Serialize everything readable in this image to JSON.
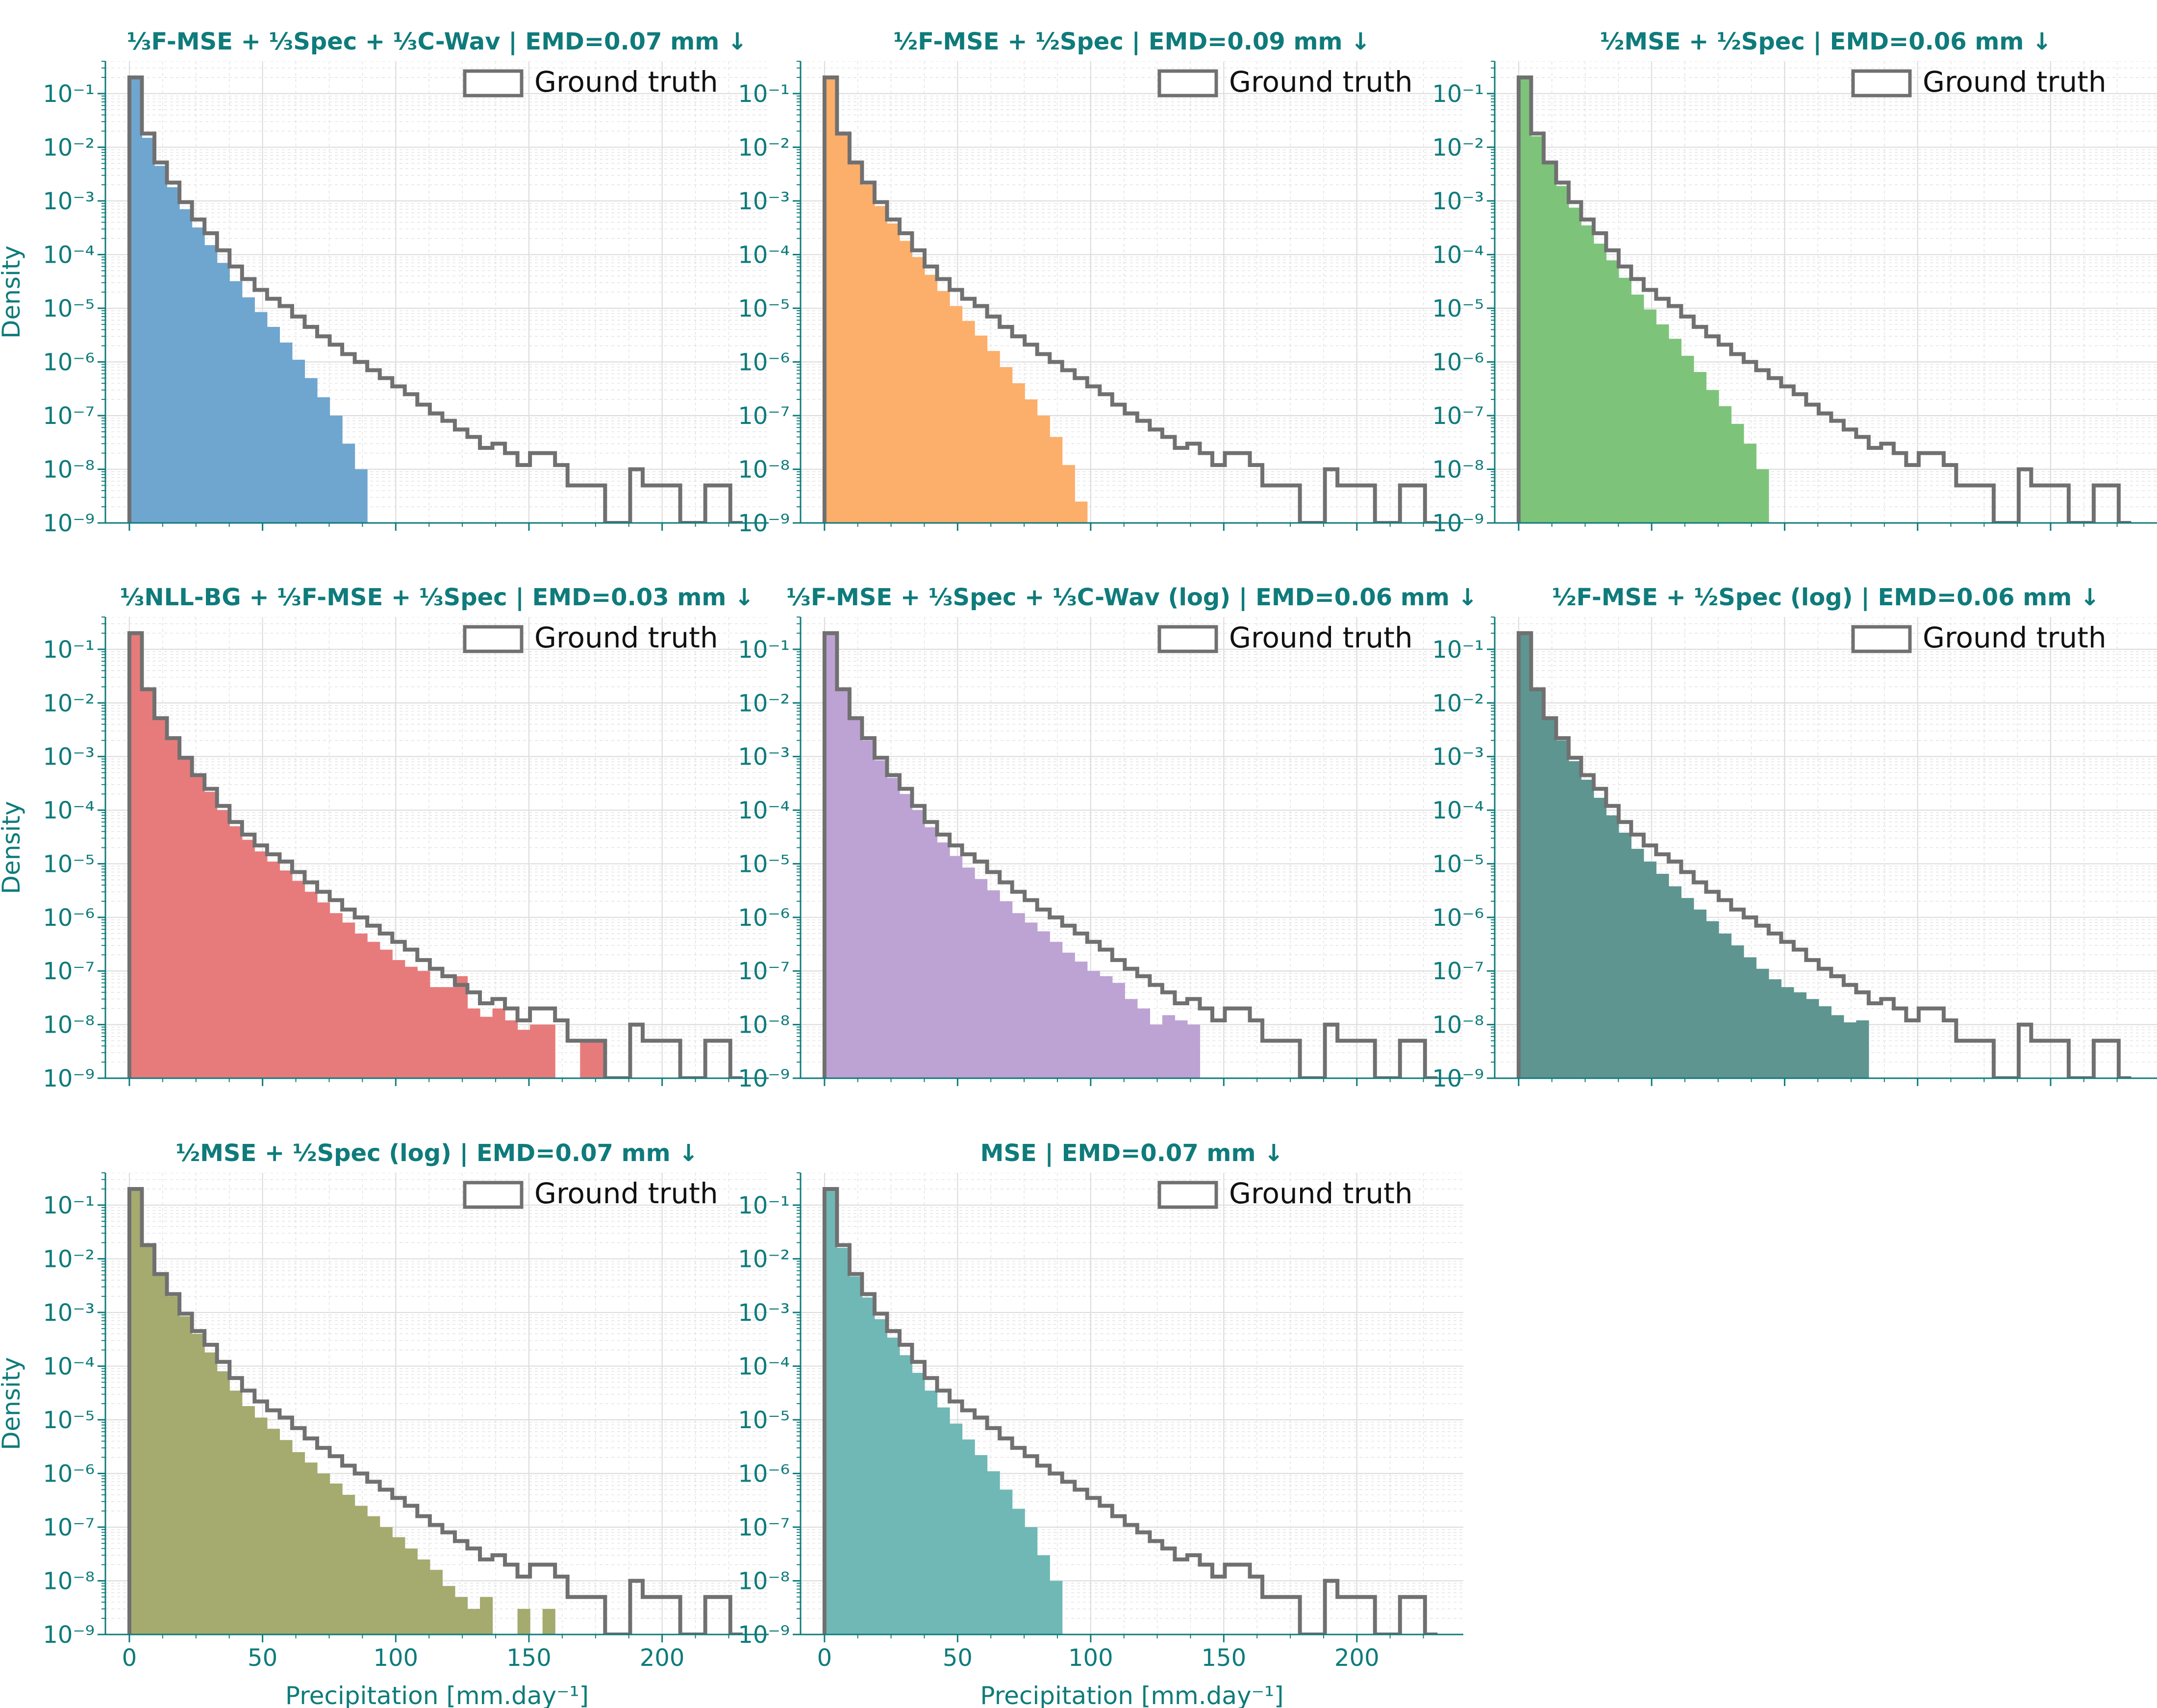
{
  "figure": {
    "text_color": "#0f7b7b",
    "ground_truth_color": "#707070",
    "grid_color": "#dddddd",
    "xlabel": "Precipitation [mm.day⁻¹]",
    "ylabel": "Density",
    "legend_label": "Ground truth"
  },
  "chart_data": [
    {
      "type": "histogram",
      "title": "⅓F-MSE + ⅓Spec + ⅓C-Wav | EMD=0.07 mm ↓",
      "color": "#6fa6cf",
      "yscale": "log",
      "ylim": [
        1e-09,
        0.4
      ],
      "xlim": [
        -9,
        240
      ],
      "xticks": [
        0,
        50,
        100,
        150,
        200
      ],
      "yticks": [
        "10⁻⁹",
        "10⁻⁸",
        "10⁻⁷",
        "10⁻⁶",
        "10⁻⁵",
        "10⁻⁴",
        "10⁻³",
        "10⁻²",
        "10⁻¹"
      ],
      "legend": "top-right",
      "bin_width": 4.7,
      "ground_truth": [
        0.2,
        0.018,
        0.0052,
        0.0022,
        0.00095,
        0.00045,
        0.00025,
        0.00012,
        6e-05,
        3.5e-05,
        2.2e-05,
        1.5e-05,
        1.1e-05,
        7e-06,
        4.5e-06,
        3e-06,
        2.1e-06,
        1.4e-06,
        1e-06,
        7e-07,
        5e-07,
        3.5e-07,
        2.5e-07,
        1.6e-07,
        1.1e-07,
        8e-08,
        5.5e-08,
        4e-08,
        2.5e-08,
        3e-08,
        2e-08,
        1.2e-08,
        2e-08,
        2e-08,
        1.2e-08,
        5e-09,
        5e-09,
        5e-09,
        1e-09,
        1e-09,
        1e-08,
        5e-09,
        5e-09,
        5e-09,
        1e-09,
        1e-09,
        5e-09,
        5e-09,
        1e-09
      ],
      "predicted": [
        0.2,
        0.015,
        0.0045,
        0.0018,
        0.0007,
        0.00032,
        0.00015,
        7e-05,
        3.2e-05,
        1.6e-05,
        8.5e-06,
        4.5e-06,
        2.3e-06,
        1.1e-06,
        5e-07,
        2.2e-07,
        1e-07,
        3e-08,
        1e-08
      ]
    },
    {
      "type": "histogram",
      "title": "½F-MSE + ½Spec | EMD=0.09 mm ↓",
      "color": "#fcae6b",
      "yscale": "log",
      "ylim": [
        1e-09,
        0.4
      ],
      "xlim": [
        -9,
        240
      ],
      "xticks": [
        0,
        50,
        100,
        150,
        200
      ],
      "yticks": [
        "10⁻⁹",
        "10⁻⁸",
        "10⁻⁷",
        "10⁻⁶",
        "10⁻⁵",
        "10⁻⁴",
        "10⁻³",
        "10⁻²",
        "10⁻¹"
      ],
      "legend": "top-right",
      "bin_width": 4.7,
      "ground_truth": [
        0.2,
        0.018,
        0.0052,
        0.0022,
        0.00095,
        0.00045,
        0.00025,
        0.00012,
        6e-05,
        3.5e-05,
        2.2e-05,
        1.5e-05,
        1.1e-05,
        7e-06,
        4.5e-06,
        3e-06,
        2.1e-06,
        1.4e-06,
        1e-06,
        7e-07,
        5e-07,
        3.5e-07,
        2.5e-07,
        1.6e-07,
        1.1e-07,
        8e-08,
        5.5e-08,
        4e-08,
        2.5e-08,
        3e-08,
        2e-08,
        1.2e-08,
        2e-08,
        2e-08,
        1.2e-08,
        5e-09,
        5e-09,
        5e-09,
        1e-09,
        1e-09,
        1e-08,
        5e-09,
        5e-09,
        5e-09,
        1e-09,
        1e-09,
        5e-09,
        5e-09,
        1e-09
      ],
      "predicted": [
        0.2,
        0.017,
        0.005,
        0.002,
        0.0008,
        0.00038,
        0.00018,
        9e-05,
        4.2e-05,
        2.1e-05,
        1.1e-05,
        5.8e-06,
        3.1e-06,
        1.6e-06,
        8e-07,
        4e-07,
        2e-07,
        1e-07,
        4e-08,
        1.2e-08,
        2.5e-09
      ]
    },
    {
      "type": "histogram",
      "title": "½MSE + ½Spec | EMD=0.06 mm ↓",
      "color": "#7dc47a",
      "yscale": "log",
      "ylim": [
        1e-09,
        0.4
      ],
      "xlim": [
        -9,
        240
      ],
      "xticks": [
        0,
        50,
        100,
        150,
        200
      ],
      "yticks": [
        "10⁻⁹",
        "10⁻⁸",
        "10⁻⁷",
        "10⁻⁶",
        "10⁻⁵",
        "10⁻⁴",
        "10⁻³",
        "10⁻²",
        "10⁻¹"
      ],
      "legend": "top-right",
      "bin_width": 4.7,
      "ground_truth": [
        0.2,
        0.018,
        0.0052,
        0.0022,
        0.00095,
        0.00045,
        0.00025,
        0.00012,
        6e-05,
        3.5e-05,
        2.2e-05,
        1.5e-05,
        1.1e-05,
        7e-06,
        4.5e-06,
        3e-06,
        2.1e-06,
        1.4e-06,
        1e-06,
        7e-07,
        5e-07,
        3.5e-07,
        2.5e-07,
        1.6e-07,
        1.1e-07,
        8e-08,
        5.5e-08,
        4e-08,
        2.5e-08,
        3e-08,
        2e-08,
        1.2e-08,
        2e-08,
        2e-08,
        1.2e-08,
        5e-09,
        5e-09,
        5e-09,
        1e-09,
        1e-09,
        1e-08,
        5e-09,
        5e-09,
        5e-09,
        1e-09,
        1e-09,
        5e-09,
        5e-09,
        1e-09
      ],
      "predicted": [
        0.2,
        0.016,
        0.0048,
        0.0019,
        0.00075,
        0.00035,
        0.00016,
        7.8e-05,
        3.7e-05,
        1.8e-05,
        9.5e-06,
        5e-06,
        2.7e-06,
        1.3e-06,
        6.5e-07,
        3e-07,
        1.5e-07,
        7e-08,
        3e-08,
        1e-08
      ]
    },
    {
      "type": "histogram",
      "title": "⅓NLL-BG + ⅓F-MSE + ⅓Spec | EMD=0.03 mm ↓",
      "color": "#e77b7b",
      "yscale": "log",
      "ylim": [
        1e-09,
        0.4
      ],
      "xlim": [
        -9,
        240
      ],
      "xticks": [
        0,
        50,
        100,
        150,
        200
      ],
      "yticks": [
        "10⁻⁹",
        "10⁻⁸",
        "10⁻⁷",
        "10⁻⁶",
        "10⁻⁵",
        "10⁻⁴",
        "10⁻³",
        "10⁻²",
        "10⁻¹"
      ],
      "legend": "top-right",
      "bin_width": 4.7,
      "ground_truth": [
        0.2,
        0.018,
        0.0052,
        0.0022,
        0.00095,
        0.00045,
        0.00025,
        0.00012,
        6e-05,
        3.5e-05,
        2.2e-05,
        1.5e-05,
        1.1e-05,
        7e-06,
        4.5e-06,
        3e-06,
        2.1e-06,
        1.4e-06,
        1e-06,
        7e-07,
        5e-07,
        3.5e-07,
        2.5e-07,
        1.6e-07,
        1.1e-07,
        8e-08,
        5.5e-08,
        4e-08,
        2.5e-08,
        3e-08,
        2e-08,
        1.2e-08,
        2e-08,
        2e-08,
        1.2e-08,
        5e-09,
        5e-09,
        5e-09,
        1e-09,
        1e-09,
        1e-08,
        5e-09,
        5e-09,
        5e-09,
        1e-09,
        1e-09,
        5e-09,
        5e-09,
        1e-09
      ],
      "predicted": [
        0.2,
        0.018,
        0.0052,
        0.0021,
        0.0009,
        0.00042,
        0.00022,
        0.0001,
        5e-05,
        2.8e-05,
        1.7e-05,
        1.1e-05,
        7.5e-06,
        4.8e-06,
        3e-06,
        1.9e-06,
        1.2e-06,
        8e-07,
        5e-07,
        3.5e-07,
        2.5e-07,
        1.6e-07,
        1.2e-07,
        1e-07,
        5e-08,
        5e-08,
        8e-08,
        2e-08,
        1.4e-08,
        2e-08,
        1.2e-08,
        8e-09,
        1e-08,
        1e-08,
        1e-09,
        1e-09,
        5e-09,
        5e-09
      ]
    },
    {
      "type": "histogram",
      "title": "⅓F-MSE + ⅓Spec + ⅓C-Wav (log) | EMD=0.06 mm ↓",
      "color": "#bca3d4",
      "yscale": "log",
      "ylim": [
        1e-09,
        0.4
      ],
      "xlim": [
        -9,
        240
      ],
      "xticks": [
        0,
        50,
        100,
        150,
        200
      ],
      "yticks": [
        "10⁻⁹",
        "10⁻⁸",
        "10⁻⁷",
        "10⁻⁶",
        "10⁻⁵",
        "10⁻⁴",
        "10⁻³",
        "10⁻²",
        "10⁻¹"
      ],
      "legend": "top-right",
      "bin_width": 4.7,
      "ground_truth": [
        0.2,
        0.018,
        0.0052,
        0.0022,
        0.00095,
        0.00045,
        0.00025,
        0.00012,
        6e-05,
        3.5e-05,
        2.2e-05,
        1.5e-05,
        1.1e-05,
        7e-06,
        4.5e-06,
        3e-06,
        2.1e-06,
        1.4e-06,
        1e-06,
        7e-07,
        5e-07,
        3.5e-07,
        2.5e-07,
        1.6e-07,
        1.1e-07,
        8e-08,
        5.5e-08,
        4e-08,
        2.5e-08,
        3e-08,
        2e-08,
        1.2e-08,
        2e-08,
        2e-08,
        1.2e-08,
        5e-09,
        5e-09,
        5e-09,
        1e-09,
        1e-09,
        1e-08,
        5e-09,
        5e-09,
        5e-09,
        1e-09,
        1e-09,
        5e-09,
        5e-09,
        1e-09
      ],
      "predicted": [
        0.2,
        0.017,
        0.005,
        0.002,
        0.00085,
        0.0004,
        0.0002,
        0.0001,
        4.8e-05,
        2.5e-05,
        1.4e-05,
        8.5e-06,
        5.2e-06,
        3.2e-06,
        2e-06,
        1.2e-06,
        8e-07,
        5.5e-07,
        3.5e-07,
        2.2e-07,
        1.5e-07,
        1e-07,
        8e-08,
        6e-08,
        3e-08,
        2e-08,
        1e-08,
        1.5e-08,
        1.2e-08,
        1e-08
      ]
    },
    {
      "type": "histogram",
      "title": "½F-MSE + ½Spec (log) | EMD=0.06 mm ↓",
      "color": "#5e9590",
      "yscale": "log",
      "ylim": [
        1e-09,
        0.4
      ],
      "xlim": [
        -9,
        240
      ],
      "xticks": [
        0,
        50,
        100,
        150,
        200
      ],
      "yticks": [
        "10⁻⁹",
        "10⁻⁸",
        "10⁻⁷",
        "10⁻⁶",
        "10⁻⁵",
        "10⁻⁴",
        "10⁻³",
        "10⁻²",
        "10⁻¹"
      ],
      "legend": "top-right",
      "bin_width": 4.7,
      "ground_truth": [
        0.2,
        0.018,
        0.0052,
        0.0022,
        0.00095,
        0.00045,
        0.00025,
        0.00012,
        6e-05,
        3.5e-05,
        2.2e-05,
        1.5e-05,
        1.1e-05,
        7e-06,
        4.5e-06,
        3e-06,
        2.1e-06,
        1.4e-06,
        1e-06,
        7e-07,
        5e-07,
        3.5e-07,
        2.5e-07,
        1.6e-07,
        1.1e-07,
        8e-08,
        5.5e-08,
        4e-08,
        2.5e-08,
        3e-08,
        2e-08,
        1.2e-08,
        2e-08,
        2e-08,
        1.2e-08,
        5e-09,
        5e-09,
        5e-09,
        1e-09,
        1e-09,
        1e-08,
        5e-09,
        5e-09,
        5e-09,
        1e-09,
        1e-09,
        5e-09,
        5e-09,
        1e-09
      ],
      "predicted": [
        0.2,
        0.017,
        0.005,
        0.002,
        0.00082,
        0.00037,
        0.00017,
        8e-05,
        3.8e-05,
        1.9e-05,
        1.1e-05,
        6.5e-06,
        3.8e-06,
        2.3e-06,
        1.4e-06,
        8.5e-07,
        5e-07,
        3e-07,
        1.8e-07,
        1.1e-07,
        7e-08,
        5e-08,
        4e-08,
        3e-08,
        2.2e-08,
        1.5e-08,
        1.1e-08,
        1.2e-08
      ]
    },
    {
      "type": "histogram",
      "title": "½MSE + ½Spec (log) | EMD=0.07 mm ↓",
      "color": "#a5aa6f",
      "yscale": "log",
      "ylim": [
        1e-09,
        0.4
      ],
      "xlim": [
        -9,
        240
      ],
      "xticks": [
        0,
        50,
        100,
        150,
        200
      ],
      "yticks": [
        "10⁻⁹",
        "10⁻⁸",
        "10⁻⁷",
        "10⁻⁶",
        "10⁻⁵",
        "10⁻⁴",
        "10⁻³",
        "10⁻²",
        "10⁻¹"
      ],
      "legend": "top-right",
      "bin_width": 4.7,
      "ground_truth": [
        0.2,
        0.018,
        0.0052,
        0.0022,
        0.00095,
        0.00045,
        0.00025,
        0.00012,
        6e-05,
        3.5e-05,
        2.2e-05,
        1.5e-05,
        1.1e-05,
        7e-06,
        4.5e-06,
        3e-06,
        2.1e-06,
        1.4e-06,
        1e-06,
        7e-07,
        5e-07,
        3.5e-07,
        2.5e-07,
        1.6e-07,
        1.1e-07,
        8e-08,
        5.5e-08,
        4e-08,
        2.5e-08,
        3e-08,
        2e-08,
        1.2e-08,
        2e-08,
        2e-08,
        1.2e-08,
        5e-09,
        5e-09,
        5e-09,
        1e-09,
        1e-09,
        1e-08,
        5e-09,
        5e-09,
        5e-09,
        1e-09,
        1e-09,
        5e-09,
        5e-09,
        1e-09
      ],
      "predicted": [
        0.2,
        0.017,
        0.005,
        0.002,
        0.00085,
        0.0004,
        0.00018,
        8e-05,
        3.5e-05,
        1.8e-05,
        1.1e-05,
        6.8e-06,
        4.2e-06,
        2.5e-06,
        1.6e-06,
        1e-06,
        6.5e-07,
        4e-07,
        2.5e-07,
        1.6e-07,
        1e-07,
        6.5e-08,
        4e-08,
        2.5e-08,
        1.6e-08,
        8e-09,
        5e-09,
        3e-09,
        5e-09,
        1e-09,
        1e-09,
        3e-09,
        1e-09,
        3e-09
      ]
    },
    {
      "type": "histogram",
      "title": "MSE | EMD=0.07 mm ↓",
      "color": "#6fb8b6",
      "yscale": "log",
      "ylim": [
        1e-09,
        0.4
      ],
      "xlim": [
        -9,
        240
      ],
      "xticks": [
        0,
        50,
        100,
        150,
        200
      ],
      "yticks": [
        "10⁻⁹",
        "10⁻⁸",
        "10⁻⁷",
        "10⁻⁶",
        "10⁻⁵",
        "10⁻⁴",
        "10⁻³",
        "10⁻²",
        "10⁻¹"
      ],
      "legend": "top-right",
      "bin_width": 4.7,
      "ground_truth": [
        0.2,
        0.018,
        0.0052,
        0.0022,
        0.00095,
        0.00045,
        0.00025,
        0.00012,
        6e-05,
        3.5e-05,
        2.2e-05,
        1.5e-05,
        1.1e-05,
        7e-06,
        4.5e-06,
        3e-06,
        2.1e-06,
        1.4e-06,
        1e-06,
        7e-07,
        5e-07,
        3.5e-07,
        2.5e-07,
        1.6e-07,
        1.1e-07,
        8e-08,
        5.5e-08,
        4e-08,
        2.5e-08,
        3e-08,
        2e-08,
        1.2e-08,
        2e-08,
        2e-08,
        1.2e-08,
        5e-09,
        5e-09,
        5e-09,
        1e-09,
        1e-09,
        1e-08,
        5e-09,
        5e-09,
        5e-09,
        1e-09,
        1e-09,
        5e-09,
        5e-09,
        1e-09
      ],
      "predicted": [
        0.2,
        0.016,
        0.0047,
        0.0019,
        0.00075,
        0.00034,
        0.00016,
        7.5e-05,
        3.5e-05,
        1.7e-05,
        8.5e-06,
        4.3e-06,
        2.2e-06,
        1.1e-06,
        5e-07,
        2.2e-07,
        1e-07,
        3e-08,
        1e-08
      ]
    }
  ]
}
